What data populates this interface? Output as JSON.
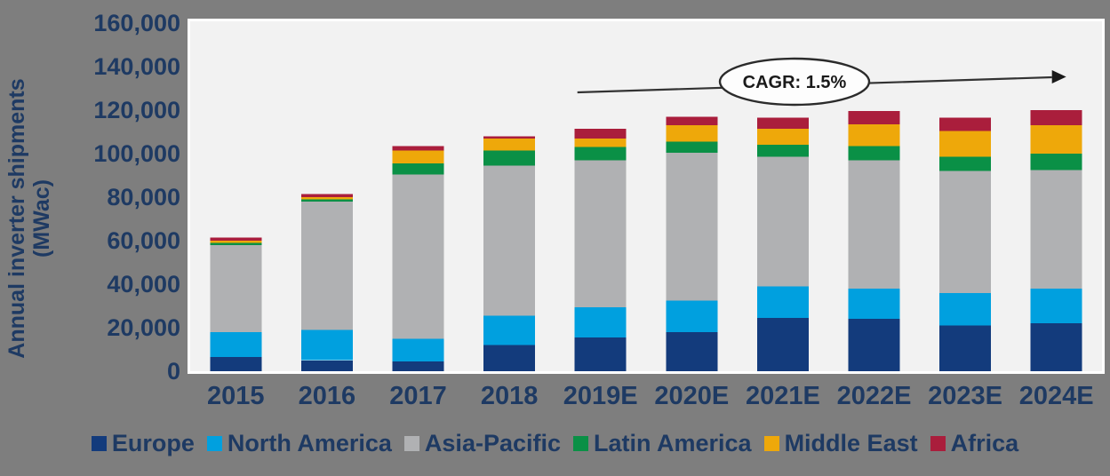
{
  "figure": {
    "background_color": "#7E7E7E",
    "plot_background_color": "#F2F2F2",
    "plot_border_color": "#FFFFFF",
    "axis_text_color": "#1E3A63"
  },
  "chart_data": {
    "type": "bar",
    "stacked": true,
    "title": "",
    "xlabel": "",
    "ylabel": "Annual inverter shipments (MWac)",
    "ylabel_line1": "Annual inverter shipments",
    "ylabel_line2": "(MWac)",
    "ylim": [
      0,
      160000
    ],
    "ytick_step": 20000,
    "grid": false,
    "legend_position": "bottom",
    "categories": [
      "2015",
      "2016",
      "2017",
      "2018",
      "2019E",
      "2020E",
      "2021E",
      "2022E",
      "2023E",
      "2024E"
    ],
    "series": [
      {
        "name": "Europe",
        "color": "#133B7C",
        "values": [
          6500,
          5000,
          4500,
          12000,
          15500,
          18000,
          24500,
          24000,
          21000,
          22000
        ]
      },
      {
        "name": "North America",
        "color": "#00A0DF",
        "values": [
          11500,
          14000,
          10500,
          13500,
          14000,
          14500,
          14500,
          14000,
          15000,
          16000
        ]
      },
      {
        "name": "Asia-Pacific",
        "color": "#B0B1B3",
        "values": [
          40000,
          59000,
          75500,
          69000,
          67500,
          68000,
          59500,
          59000,
          56000,
          54500
        ]
      },
      {
        "name": "Latin America",
        "color": "#0A9046",
        "values": [
          1000,
          1000,
          5000,
          7000,
          6000,
          5000,
          5500,
          6500,
          6500,
          7500
        ]
      },
      {
        "name": "Middle East",
        "color": "#EEA80A",
        "values": [
          1000,
          1000,
          6000,
          5500,
          4000,
          7500,
          7500,
          10000,
          12000,
          13000
        ]
      },
      {
        "name": "Africa",
        "color": "#AA1E3C",
        "values": [
          1500,
          1500,
          2000,
          1000,
          4500,
          4000,
          5000,
          6000,
          6000,
          7000
        ]
      }
    ],
    "annotation": {
      "label": "CAGR: 1.5%",
      "arrow_from_category": "2019E",
      "arrow_to_category": "2024E"
    }
  }
}
